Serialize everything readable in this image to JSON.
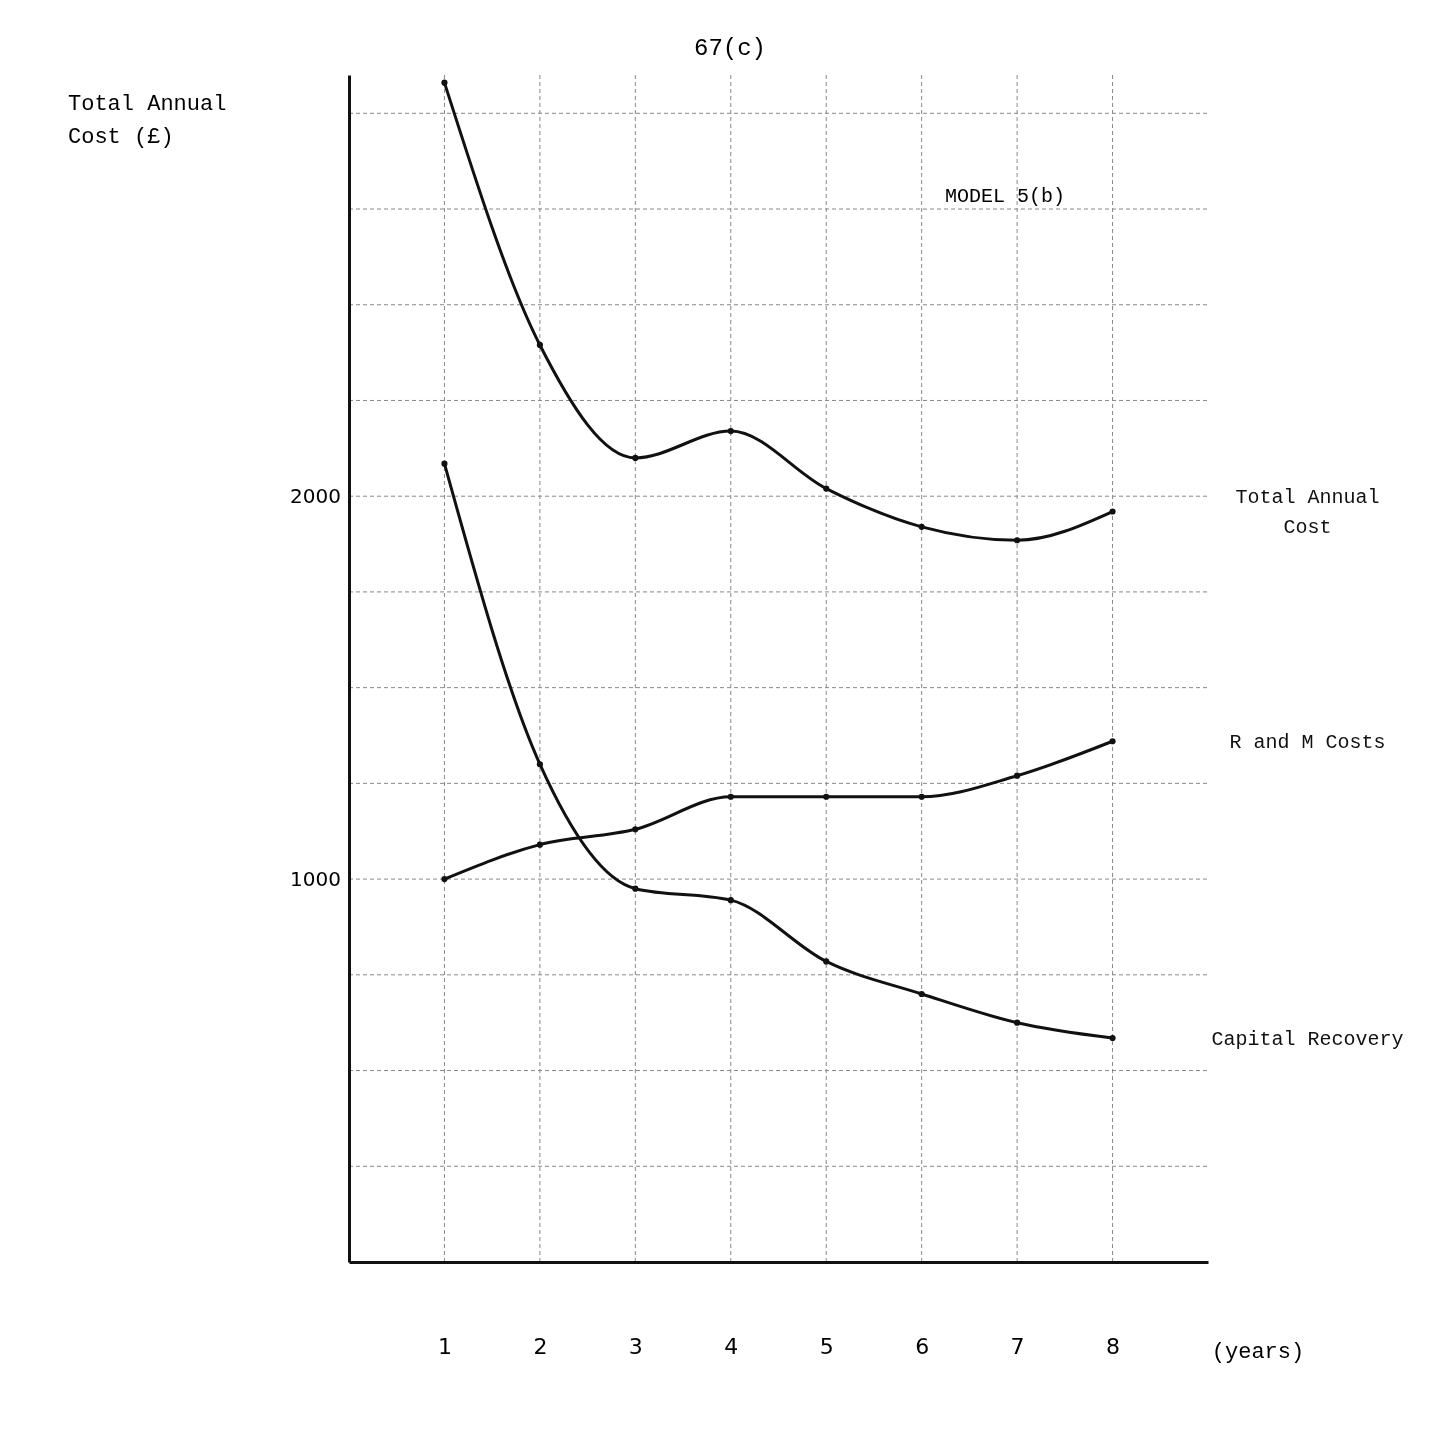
{
  "chart_data": {
    "type": "line",
    "title": "67(c)",
    "subtitle": "MODEL 5(b)",
    "ylabel": "Total Annual Cost (£)",
    "xlabel": "(years)",
    "x": [
      1,
      2,
      3,
      4,
      5,
      6,
      7,
      8
    ],
    "series": [
      {
        "name": "Total Annual Cost",
        "color": "#111111",
        "values": [
          3080,
          2395,
          2100,
          2170,
          2020,
          1920,
          1885,
          1960
        ]
      },
      {
        "name": "R and M Costs",
        "color": "#111111",
        "values": [
          1000,
          1090,
          1130,
          1215,
          1215,
          1215,
          1270,
          1360
        ]
      },
      {
        "name": "Capital Recovery",
        "color": "#111111",
        "values": [
          2085,
          1300,
          975,
          945,
          785,
          700,
          625,
          585
        ]
      }
    ],
    "xlim": [
      0,
      9
    ],
    "xticks": [
      1,
      2,
      3,
      4,
      5,
      6,
      7,
      8
    ],
    "ylim": [
      0,
      3100
    ],
    "yticks": [
      {
        "value": 250,
        "label": null
      },
      {
        "value": 500,
        "label": null
      },
      {
        "value": 750,
        "label": null
      },
      1000,
      {
        "value": 1250,
        "label": null
      },
      {
        "value": 1500,
        "label": null
      },
      {
        "value": 1750,
        "label": null
      },
      2000,
      {
        "value": 2250,
        "label": null
      },
      {
        "value": 2500,
        "label": null
      },
      {
        "value": 2750,
        "label": null
      },
      {
        "value": 3000,
        "label": null
      }
    ],
    "grid": true,
    "marker": "circle",
    "line_style": "solid"
  }
}
